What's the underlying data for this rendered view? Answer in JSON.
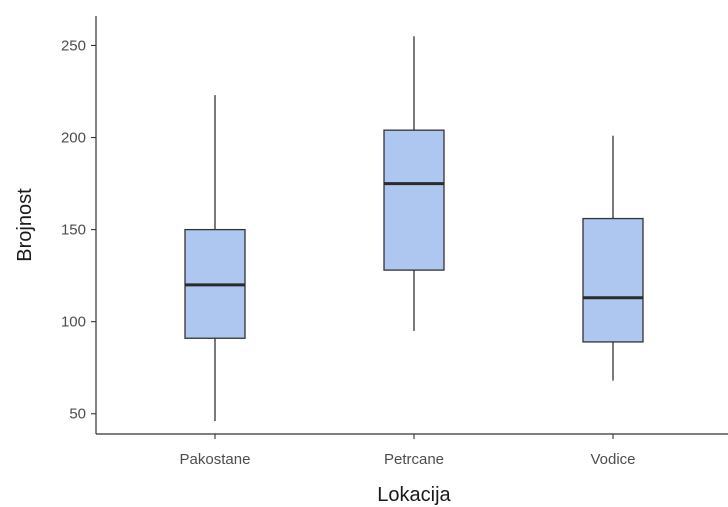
{
  "chart_data": {
    "type": "box",
    "xlabel": "Lokacija",
    "ylabel": "Brojnost",
    "categories": [
      "Pakostane",
      "Petrcane",
      "Vodice"
    ],
    "boxes": [
      {
        "category": "Pakostane",
        "min": 46,
        "q1": 91,
        "median": 120,
        "q3": 150,
        "max": 223
      },
      {
        "category": "Petrcane",
        "min": 95,
        "q1": 128,
        "median": 175,
        "q3": 204,
        "max": 255
      },
      {
        "category": "Vodice",
        "min": 68,
        "q1": 89,
        "median": 113,
        "q3": 156,
        "max": 201
      }
    ],
    "y_ticks": [
      50,
      100,
      150,
      200,
      250
    ],
    "ylim": [
      39,
      266
    ],
    "grid": false,
    "box_fill": "#aec7f0",
    "line_color": "#333333"
  }
}
